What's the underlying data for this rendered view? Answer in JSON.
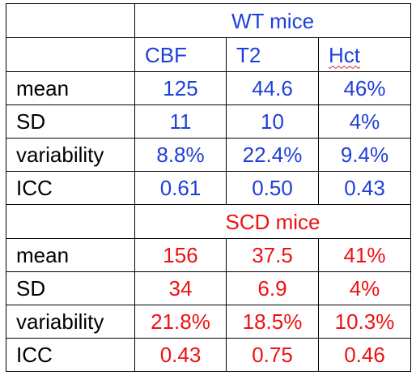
{
  "colors": {
    "wt": "#1f3fd9",
    "scd": "#ee1111",
    "label": "#000000",
    "border": "#000000"
  },
  "wt": {
    "title": "WT mice",
    "columns": [
      "CBF",
      "T2",
      "Hct"
    ],
    "rows": [
      {
        "label": "mean",
        "values": [
          "125",
          "44.6",
          "46%"
        ]
      },
      {
        "label": "SD",
        "values": [
          "11",
          "10",
          "4%"
        ]
      },
      {
        "label": "variability",
        "values": [
          "8.8%",
          "22.4%",
          "9.4%"
        ]
      },
      {
        "label": "ICC",
        "values": [
          "0.61",
          "0.50",
          "0.43"
        ]
      }
    ]
  },
  "scd": {
    "title": "SCD mice",
    "rows": [
      {
        "label": "mean",
        "values": [
          "156",
          "37.5",
          "41%"
        ]
      },
      {
        "label": "SD",
        "values": [
          "34",
          "6.9",
          "4%"
        ]
      },
      {
        "label": "variability",
        "values": [
          "21.8%",
          "18.5%",
          "10.3%"
        ]
      },
      {
        "label": "ICC",
        "values": [
          "0.43",
          "0.75",
          "0.46"
        ]
      }
    ]
  }
}
